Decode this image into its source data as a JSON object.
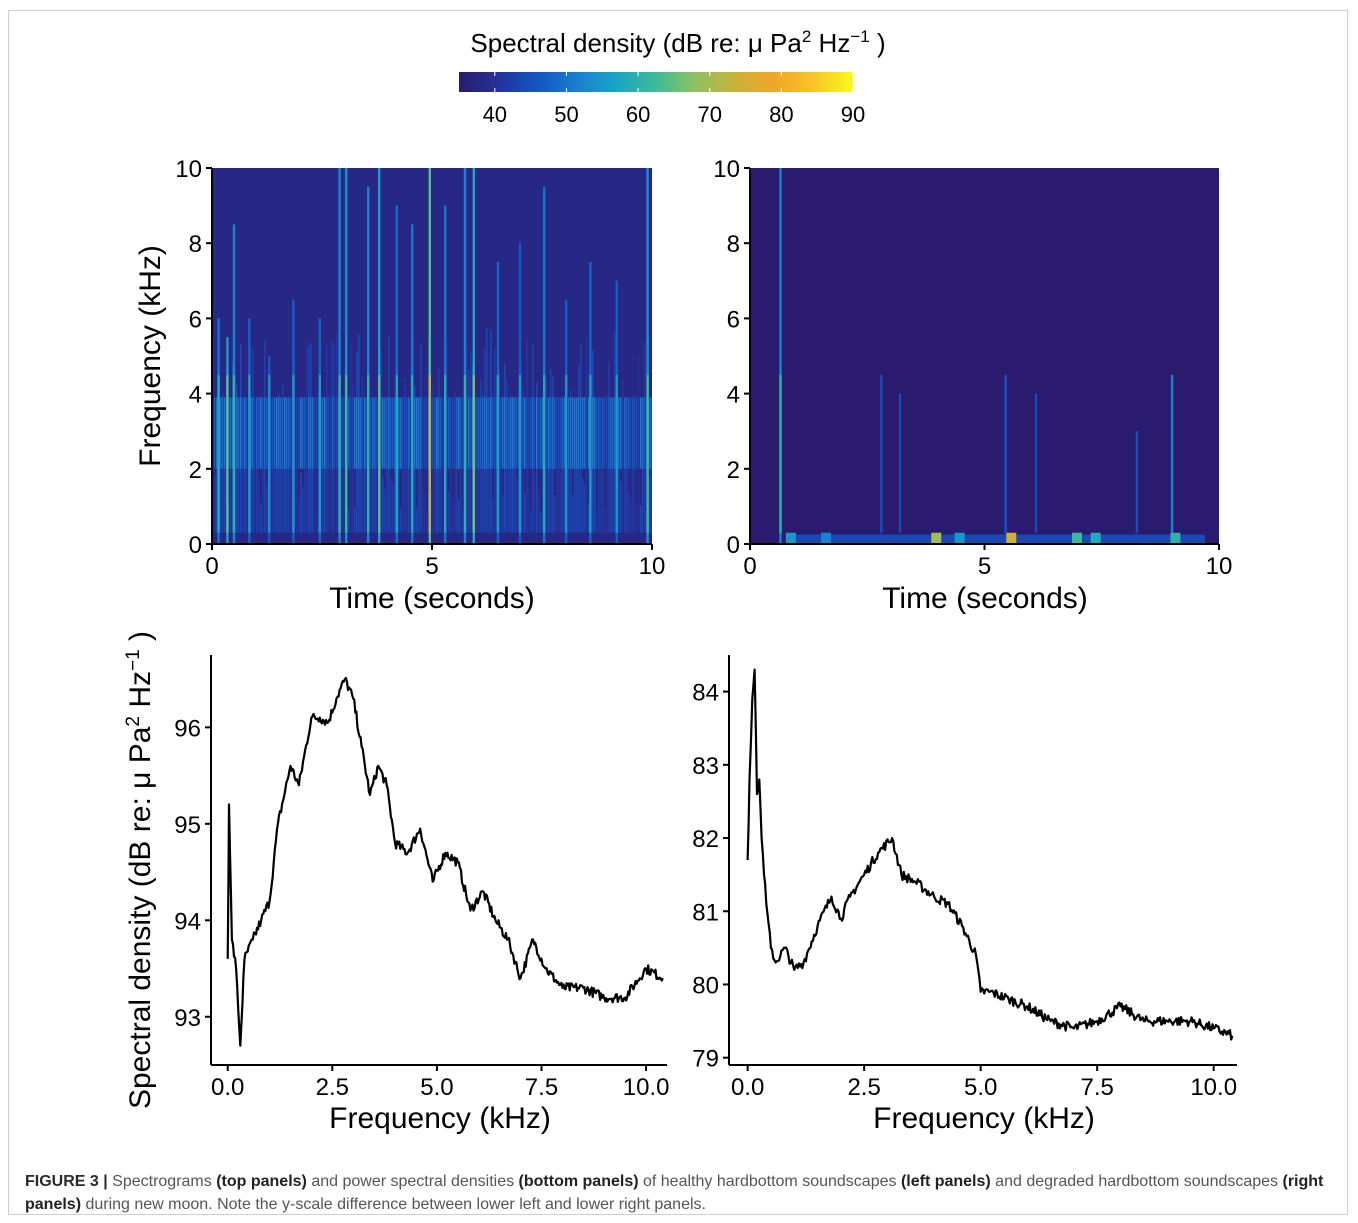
{
  "colorbar": {
    "title_main": "Spectral density (dB re: μ Pa",
    "title_sup1": "2",
    "title_mid": " Hz",
    "title_sup2": "−1",
    "title_end": " )",
    "ticks": [
      "40",
      "50",
      "60",
      "70",
      "80",
      "90"
    ],
    "range": [
      35,
      90
    ],
    "colors": [
      "#2a1b6e",
      "#24329a",
      "#1256c4",
      "#1a7fd0",
      "#1aa5c4",
      "#3ebb98",
      "#8fc160",
      "#c8b33c",
      "#f2a52a",
      "#f7c528",
      "#f9f91c"
    ]
  },
  "shared_text": {
    "spec_ylabel": "Frequency (kHz)",
    "spec_xlabel": "Time (seconds)",
    "psd_ylabel_main": "Spectral density (dB re: μ Pa",
    "psd_ylabel_sup1": "2",
    "psd_ylabel_mid": " Hz",
    "psd_ylabel_sup2": "−1",
    "psd_ylabel_end": " )",
    "psd_xlabel": "Frequency (kHz)"
  },
  "chart_data": [
    {
      "type": "heatmap",
      "panel": "top-left",
      "xlabel": "Time (seconds)",
      "ylabel": "Frequency (kHz)",
      "xlim": [
        0,
        10
      ],
      "ylim": [
        0,
        10
      ],
      "xticks": [
        "0",
        "5",
        "10"
      ],
      "yticks": [
        "0",
        "2",
        "4",
        "6",
        "8",
        "10"
      ],
      "background_db": 38,
      "band_center_khz": 3,
      "band_peak_db": 52,
      "transients": [
        {
          "t": 0.15,
          "f_max": 6.0,
          "db": 58
        },
        {
          "t": 0.35,
          "f_max": 5.5,
          "db": 64
        },
        {
          "t": 0.5,
          "f_max": 8.5,
          "db": 60
        },
        {
          "t": 0.85,
          "f_max": 6.0,
          "db": 56
        },
        {
          "t": 1.3,
          "f_max": 5.0,
          "db": 54
        },
        {
          "t": 1.85,
          "f_max": 6.5,
          "db": 55
        },
        {
          "t": 2.45,
          "f_max": 6.0,
          "db": 56
        },
        {
          "t": 2.9,
          "f_max": 10.0,
          "db": 60
        },
        {
          "t": 3.05,
          "f_max": 10.0,
          "db": 62
        },
        {
          "t": 3.55,
          "f_max": 9.5,
          "db": 60
        },
        {
          "t": 3.8,
          "f_max": 10.0,
          "db": 64
        },
        {
          "t": 4.2,
          "f_max": 9.0,
          "db": 57
        },
        {
          "t": 4.55,
          "f_max": 8.5,
          "db": 58
        },
        {
          "t": 4.95,
          "f_max": 10.0,
          "db": 72
        },
        {
          "t": 5.3,
          "f_max": 9.0,
          "db": 58
        },
        {
          "t": 5.75,
          "f_max": 10.0,
          "db": 60
        },
        {
          "t": 5.95,
          "f_max": 10.0,
          "db": 66
        },
        {
          "t": 6.5,
          "f_max": 7.5,
          "db": 56
        },
        {
          "t": 7.0,
          "f_max": 8.0,
          "db": 55
        },
        {
          "t": 7.55,
          "f_max": 9.5,
          "db": 58
        },
        {
          "t": 8.05,
          "f_max": 6.5,
          "db": 55
        },
        {
          "t": 8.6,
          "f_max": 7.5,
          "db": 56
        },
        {
          "t": 9.2,
          "f_max": 7.0,
          "db": 55
        },
        {
          "t": 9.9,
          "f_max": 10.0,
          "db": 62
        }
      ]
    },
    {
      "type": "heatmap",
      "panel": "top-right",
      "xlabel": "Time (seconds)",
      "ylabel": "",
      "xlim": [
        0,
        10
      ],
      "ylim": [
        0,
        10
      ],
      "xticks": [
        "0",
        "5",
        "10"
      ],
      "yticks": [
        "0",
        "2",
        "4",
        "6",
        "8",
        "10"
      ],
      "background_db": 35,
      "transients": [
        {
          "t": 0.65,
          "f_max": 10.0,
          "db": 60
        },
        {
          "t": 2.8,
          "f_max": 4.5,
          "db": 45
        },
        {
          "t": 3.2,
          "f_max": 4.0,
          "db": 44
        },
        {
          "t": 5.45,
          "f_max": 4.5,
          "db": 46
        },
        {
          "t": 6.1,
          "f_max": 4.0,
          "db": 44
        },
        {
          "t": 8.25,
          "f_max": 3.0,
          "db": 45
        },
        {
          "t": 9.0,
          "f_max": 4.5,
          "db": 52
        }
      ],
      "low_freq_events": [
        {
          "t": 0.85,
          "db": 55
        },
        {
          "t": 1.6,
          "db": 52
        },
        {
          "t": 3.95,
          "db": 70
        },
        {
          "t": 4.45,
          "db": 55
        },
        {
          "t": 5.55,
          "db": 75
        },
        {
          "t": 6.95,
          "db": 62
        },
        {
          "t": 7.35,
          "db": 58
        },
        {
          "t": 9.05,
          "db": 60
        }
      ]
    },
    {
      "type": "line",
      "panel": "bottom-left",
      "xlabel": "Frequency (kHz)",
      "ylabel": "Spectral density (dB re: μ Pa² Hz⁻¹ )",
      "xlim": [
        -0.4,
        10.5
      ],
      "ylim": [
        92.5,
        96.75
      ],
      "xticks": [
        "0.0",
        "2.5",
        "5.0",
        "7.5",
        "10.0"
      ],
      "yticks": [
        "93",
        "94",
        "95",
        "96"
      ],
      "x": [
        0.0,
        0.03,
        0.1,
        0.2,
        0.3,
        0.4,
        0.6,
        0.8,
        1.0,
        1.2,
        1.5,
        1.7,
        2.0,
        2.2,
        2.4,
        2.6,
        2.8,
        3.0,
        3.2,
        3.4,
        3.6,
        3.8,
        4.0,
        4.3,
        4.6,
        4.9,
        5.2,
        5.5,
        5.8,
        6.1,
        6.4,
        6.7,
        7.0,
        7.3,
        7.6,
        8.0,
        8.5,
        9.0,
        9.5,
        10.0,
        10.4
      ],
      "y": [
        93.6,
        95.2,
        93.8,
        93.5,
        92.7,
        93.6,
        93.8,
        94.0,
        94.2,
        95.0,
        95.6,
        95.4,
        96.1,
        96.1,
        96.05,
        96.3,
        96.5,
        96.3,
        95.8,
        95.3,
        95.6,
        95.4,
        94.8,
        94.7,
        94.95,
        94.4,
        94.7,
        94.6,
        94.1,
        94.3,
        94.0,
        93.8,
        93.4,
        93.8,
        93.5,
        93.3,
        93.3,
        93.2,
        93.2,
        93.5,
        93.4
      ]
    },
    {
      "type": "line",
      "panel": "bottom-right",
      "xlabel": "Frequency (kHz)",
      "ylabel": "",
      "xlim": [
        -0.4,
        10.5
      ],
      "ylim": [
        78.9,
        84.5
      ],
      "xticks": [
        "0.0",
        "2.5",
        "5.0",
        "7.5",
        "10.0"
      ],
      "yticks": [
        "79",
        "80",
        "81",
        "82",
        "83",
        "84"
      ],
      "x": [
        0.0,
        0.04,
        0.1,
        0.15,
        0.2,
        0.25,
        0.3,
        0.4,
        0.5,
        0.6,
        0.8,
        1.0,
        1.2,
        1.5,
        1.8,
        2.0,
        2.2,
        2.5,
        2.8,
        3.1,
        3.3,
        3.6,
        4.0,
        4.3,
        4.6,
        4.9,
        5.0,
        5.2,
        5.6,
        6.0,
        6.5,
        7.0,
        7.5,
        8.0,
        8.5,
        9.0,
        9.5,
        10.0,
        10.4
      ],
      "y": [
        81.7,
        82.8,
        83.9,
        84.3,
        82.6,
        82.8,
        82.0,
        81.1,
        80.5,
        80.3,
        80.5,
        80.2,
        80.3,
        80.8,
        81.2,
        80.9,
        81.2,
        81.5,
        81.8,
        82.0,
        81.5,
        81.4,
        81.2,
        81.1,
        80.8,
        80.4,
        79.9,
        79.9,
        79.8,
        79.7,
        79.5,
        79.4,
        79.5,
        79.7,
        79.5,
        79.5,
        79.5,
        79.4,
        79.3
      ]
    }
  ],
  "caption": {
    "lead": "FIGURE 3 |",
    "p1": " Spectrograms ",
    "b1": "(top panels)",
    "p2": " and power spectral densities ",
    "b2": "(bottom panels)",
    "p3": " of healthy hardbottom soundscapes ",
    "b3": "(left panels)",
    "p4": " and degraded hardbottom soundscapes ",
    "b4": "(right panels)",
    "p5": " during new moon. Note the y-scale difference between lower left and lower right panels."
  }
}
